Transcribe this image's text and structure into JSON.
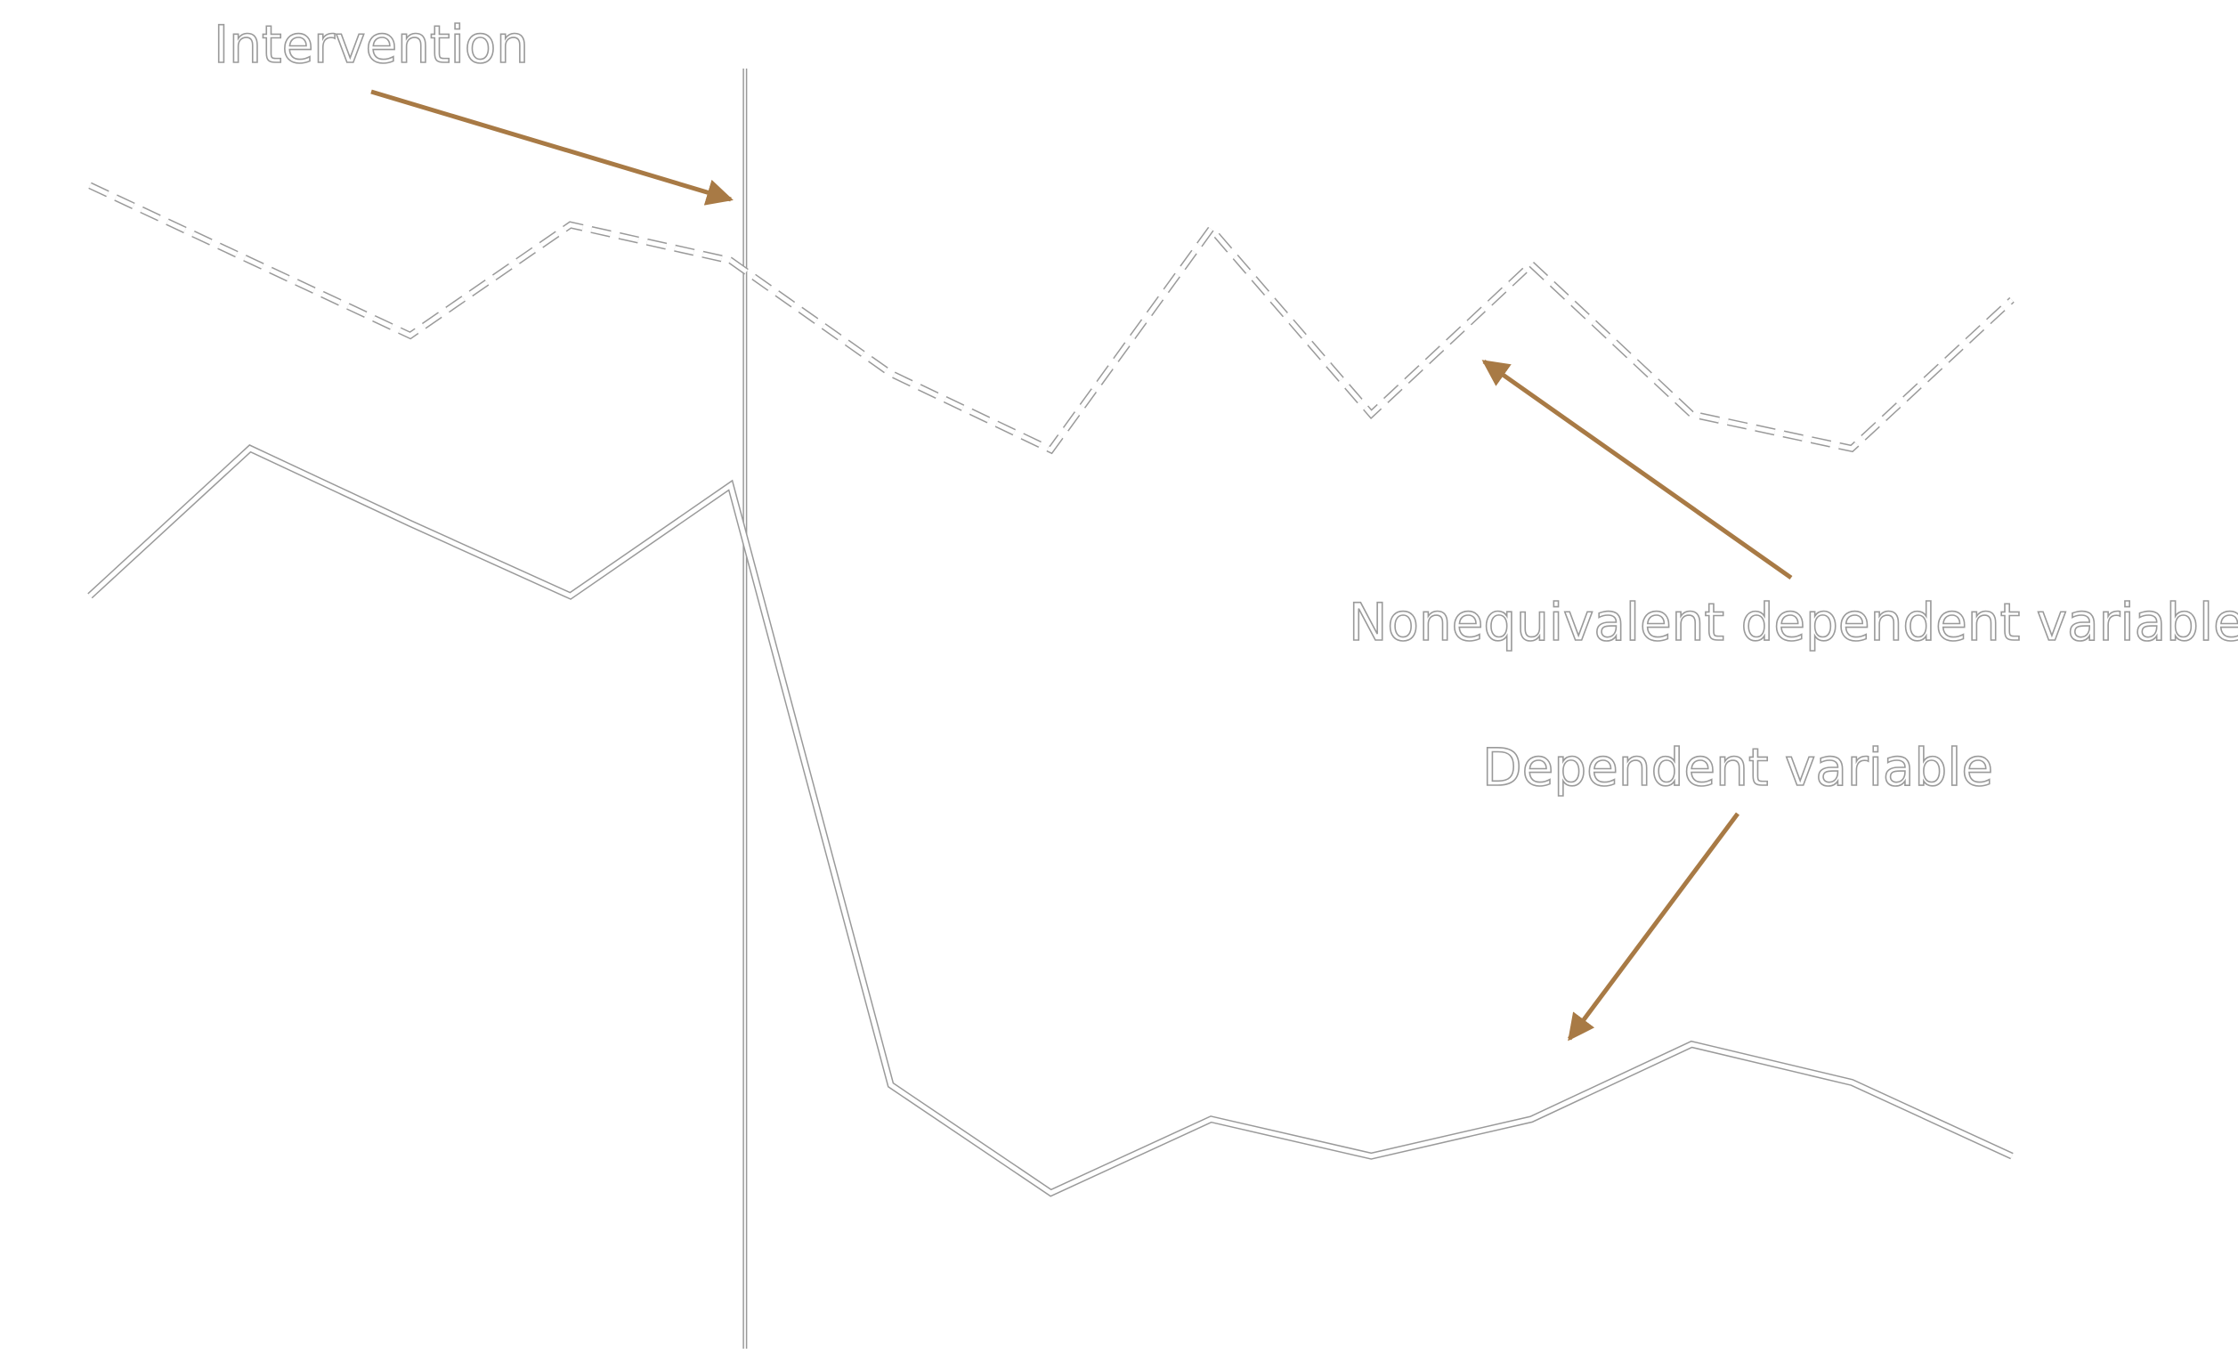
{
  "chart_data": {
    "type": "line",
    "x": [
      1,
      2,
      3,
      4,
      5,
      6,
      7,
      8,
      9,
      10,
      11,
      12,
      13
    ],
    "xlim": [
      1,
      13
    ],
    "ylim": [
      0,
      100
    ],
    "series": [
      {
        "name": "Nonequivalent dependent variable",
        "color": "#ffffff",
        "dashed": true,
        "values": [
          91.0,
          85.1,
          79.2,
          87.9,
          85.1,
          76.2,
          70.2,
          87.6,
          73.0,
          84.8,
          73.0,
          70.3,
          82.0
        ]
      },
      {
        "name": "Dependent variable",
        "color": "#ffffff",
        "dashed": false,
        "values": [
          58.7,
          70.3,
          64.4,
          58.7,
          67.4,
          20.2,
          11.7,
          17.5,
          14.6,
          17.5,
          23.4,
          20.4,
          14.6
        ]
      }
    ],
    "intervention": {
      "label": "Intervention",
      "x": 5.09
    },
    "arrow_color": "#a87a45"
  }
}
